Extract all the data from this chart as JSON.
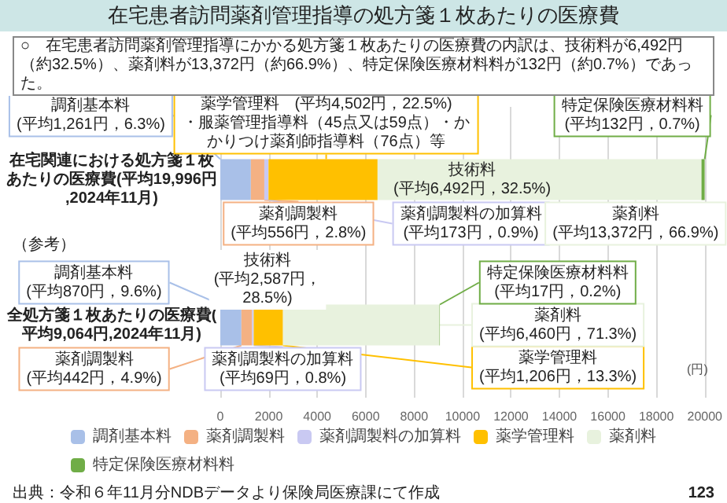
{
  "chart_data": {
    "type": "bar",
    "orientation": "horizontal",
    "stacked": true,
    "title": "在宅患者訪問薬剤管理指導の処方箋１枚あたりの医療費",
    "subtitle": "○　在宅患者訪問薬剤管理指導にかかる処方箋１枚あたりの医療費の内訳は、技術料が6,492円（約32.5%）、薬剤料が13,372円（約66.9%）、特定保険医療材料料が132円（約0.7%）であった。",
    "xlabel": "(円)",
    "categories": [
      "在宅関連における処方箋１枚あたりの医療費(平均19,996円,2024年11月)",
      "全処方箋１枚あたりの医療費(平均9,064円,2024年11月)"
    ],
    "series": [
      {
        "name": "調剤基本料",
        "color": "#a9c0e8",
        "values": [
          1261,
          870
        ],
        "value_labels": [
          "調剤基本料\n(平均1,261円，6.3%)",
          "調剤基本料\n(平均870円，9.6%)"
        ]
      },
      {
        "name": "薬剤調製料",
        "color": "#f4b183",
        "values": [
          556,
          442
        ],
        "value_labels": [
          "薬剤調製料\n(平均556円，2.8%)",
          "薬剤調製料\n(平均442円，4.9%)"
        ]
      },
      {
        "name": "薬剤調製料の加算料",
        "color": "#c9c9f2",
        "values": [
          173,
          69
        ],
        "value_labels": [
          "薬剤調製料の加算料\n(平均173円，0.9%)",
          "薬剤調製料の加算料\n(平均69円，0.8%)"
        ]
      },
      {
        "name": "薬学管理料",
        "color": "#ffc000",
        "values": [
          4502,
          1206
        ],
        "value_labels": [
          "薬学管理料　(平均4,502円，22.5%)\n・服薬管理指導料（45点又は59点）・かかりつけ薬剤師指導料（76点）等",
          "薬学管理料\n(平均1,206円，13.3%)"
        ]
      },
      {
        "name": "薬剤料",
        "color": "#e8f2de",
        "values": [
          13372,
          6460
        ],
        "value_labels": [
          "薬剤料\n(平均13,372円，66.9%)",
          "薬剤料\n(平均6,460円，71.3%)"
        ]
      },
      {
        "name": "特定保険医療材料料",
        "color": "#70ad47",
        "values": [
          132,
          17
        ],
        "value_labels": [
          "特定保険医療材料料\n(平均132円，0.7%)",
          "特定保険医療材料料\n(平均17円，0.2%)"
        ]
      }
    ],
    "xlim": [
      0,
      20000
    ],
    "xticks": [
      0,
      2000,
      4000,
      6000,
      8000,
      10000,
      12000,
      14000,
      16000,
      18000,
      20000
    ],
    "grid": "x",
    "legend": "bottom",
    "annotations": [
      "技術料\n(平均6,492円，32.5%)",
      "技術料\n(平均2,587円，\n28.5%)",
      "（参考）",
      "出典：令和６年11月分NDBデータより保険局医療課にて作成",
      "123"
    ]
  }
}
